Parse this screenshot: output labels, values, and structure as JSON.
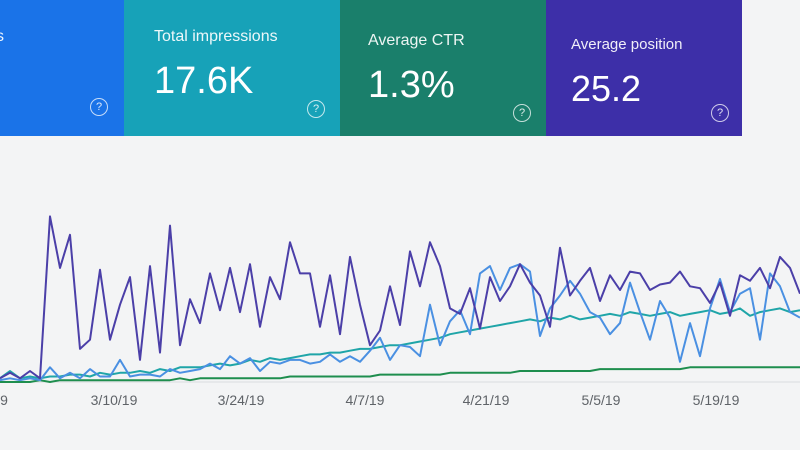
{
  "cards": [
    {
      "id": "clicks",
      "label": "s",
      "value": "",
      "color": "#1a73e8"
    },
    {
      "id": "impressions",
      "label": "Total impressions",
      "value": "17.6K",
      "color": "#17a2b8"
    },
    {
      "id": "ctr",
      "label": "Average CTR",
      "value": "1.3%",
      "color": "#1a7f6b"
    },
    {
      "id": "position",
      "label": "Average position",
      "value": "25.2",
      "color": "#3d2fa8"
    }
  ],
  "help_glyph": "?",
  "chart_data": {
    "type": "line",
    "x_ticks": [
      "9",
      "3/10/19",
      "3/24/19",
      "4/7/19",
      "4/21/19",
      "5/5/19",
      "5/19/19"
    ],
    "y_range": [
      0,
      1
    ],
    "series": [
      {
        "color": "#4b3fa8",
        "values": [
          0.02,
          0.05,
          0.02,
          0.06,
          0.02,
          0.9,
          0.62,
          0.8,
          0.18,
          0.23,
          0.61,
          0.23,
          0.42,
          0.57,
          0.12,
          0.63,
          0.16,
          0.85,
          0.2,
          0.45,
          0.32,
          0.59,
          0.39,
          0.62,
          0.38,
          0.64,
          0.3,
          0.57,
          0.45,
          0.76,
          0.59,
          0.59,
          0.3,
          0.58,
          0.26,
          0.68,
          0.42,
          0.2,
          0.28,
          0.52,
          0.31,
          0.71,
          0.52,
          0.76,
          0.63,
          0.4,
          0.37,
          0.51,
          0.29,
          0.57,
          0.44,
          0.52,
          0.64,
          0.54,
          0.47,
          0.3,
          0.73,
          0.47,
          0.55,
          0.62,
          0.44,
          0.58,
          0.5,
          0.6,
          0.59,
          0.5,
          0.53,
          0.54,
          0.6,
          0.52,
          0.51,
          0.43,
          0.54,
          0.36,
          0.58,
          0.55,
          0.62,
          0.51,
          0.68,
          0.62,
          0.48
        ]
      },
      {
        "color": "#4a90e2",
        "values": [
          0.01,
          0.02,
          0.01,
          0.02,
          0.01,
          0.08,
          0.02,
          0.05,
          0.02,
          0.07,
          0.03,
          0.03,
          0.12,
          0.03,
          0.04,
          0.04,
          0.03,
          0.07,
          0.05,
          0.06,
          0.07,
          0.1,
          0.07,
          0.14,
          0.1,
          0.13,
          0.06,
          0.11,
          0.1,
          0.12,
          0.12,
          0.1,
          0.11,
          0.15,
          0.11,
          0.14,
          0.11,
          0.17,
          0.24,
          0.12,
          0.2,
          0.19,
          0.14,
          0.42,
          0.2,
          0.33,
          0.39,
          0.26,
          0.59,
          0.63,
          0.5,
          0.62,
          0.64,
          0.6,
          0.25,
          0.4,
          0.47,
          0.55,
          0.48,
          0.38,
          0.35,
          0.26,
          0.32,
          0.54,
          0.38,
          0.23,
          0.44,
          0.35,
          0.11,
          0.32,
          0.14,
          0.4,
          0.56,
          0.38,
          0.48,
          0.51,
          0.23,
          0.59,
          0.52,
          0.38,
          0.35
        ]
      },
      {
        "color": "#1fa5a8",
        "values": [
          0.02,
          0.06,
          0.02,
          0.03,
          0.02,
          0.03,
          0.03,
          0.04,
          0.04,
          0.03,
          0.05,
          0.04,
          0.05,
          0.05,
          0.06,
          0.05,
          0.07,
          0.06,
          0.08,
          0.08,
          0.08,
          0.09,
          0.1,
          0.09,
          0.1,
          0.12,
          0.11,
          0.13,
          0.12,
          0.13,
          0.14,
          0.15,
          0.15,
          0.16,
          0.16,
          0.17,
          0.18,
          0.18,
          0.19,
          0.2,
          0.2,
          0.21,
          0.22,
          0.23,
          0.24,
          0.26,
          0.27,
          0.28,
          0.29,
          0.3,
          0.31,
          0.32,
          0.33,
          0.34,
          0.33,
          0.35,
          0.34,
          0.36,
          0.34,
          0.35,
          0.36,
          0.37,
          0.36,
          0.38,
          0.37,
          0.36,
          0.37,
          0.38,
          0.36,
          0.37,
          0.38,
          0.39,
          0.37,
          0.38,
          0.4,
          0.36,
          0.38,
          0.39,
          0.4,
          0.38,
          0.39
        ]
      },
      {
        "color": "#1e8e4e",
        "values": [
          0.0,
          0.0,
          0.0,
          0.0,
          0.01,
          0.0,
          0.01,
          0.01,
          0.01,
          0.01,
          0.01,
          0.01,
          0.01,
          0.01,
          0.01,
          0.01,
          0.01,
          0.01,
          0.02,
          0.01,
          0.02,
          0.02,
          0.02,
          0.02,
          0.02,
          0.02,
          0.02,
          0.02,
          0.02,
          0.03,
          0.03,
          0.03,
          0.03,
          0.03,
          0.03,
          0.03,
          0.03,
          0.03,
          0.04,
          0.04,
          0.04,
          0.04,
          0.04,
          0.04,
          0.04,
          0.05,
          0.05,
          0.05,
          0.05,
          0.05,
          0.05,
          0.05,
          0.06,
          0.06,
          0.06,
          0.06,
          0.06,
          0.06,
          0.06,
          0.06,
          0.07,
          0.07,
          0.07,
          0.07,
          0.07,
          0.07,
          0.07,
          0.07,
          0.07,
          0.08,
          0.08,
          0.08,
          0.08,
          0.08,
          0.08,
          0.08,
          0.08,
          0.08,
          0.08,
          0.08,
          0.08
        ]
      }
    ]
  }
}
